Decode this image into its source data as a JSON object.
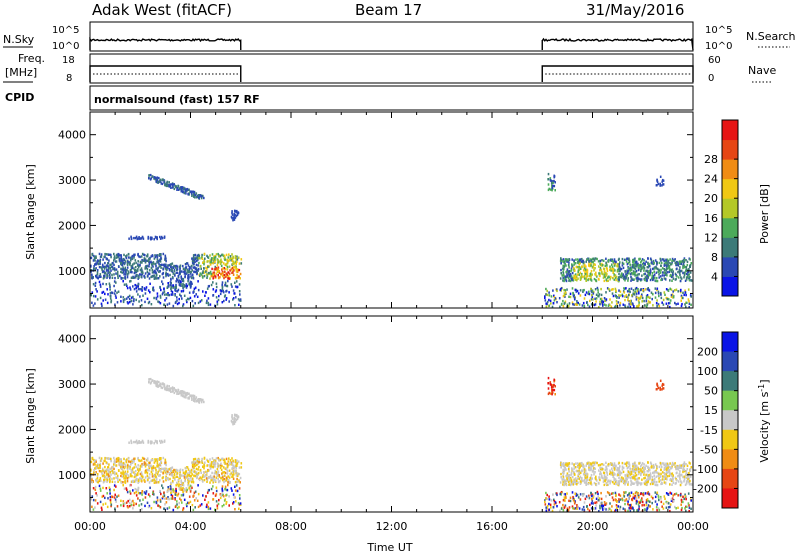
{
  "header": {
    "station": "Adak West (fitACF)",
    "beam": "Beam 17",
    "date": "31/May/2016"
  },
  "params": {
    "nsky_label": "N.Sky",
    "nsky_ticks": [
      "10^5",
      "10^0"
    ],
    "nsearch_label": "N.Search",
    "nsearch_ticks": [
      "10^5",
      "10^0"
    ],
    "freq_label_1": "Freq.",
    "freq_label_2": "[MHz]",
    "freq_ticks": [
      "18",
      "8"
    ],
    "nave_label": "Nave",
    "nave_ticks": [
      "60",
      "0"
    ],
    "cpid_label": "CPID",
    "cpid_text": "normalsound (fast) 157 RF"
  },
  "chart_data": [
    {
      "type": "heatmap",
      "name": "power",
      "xlabel": "",
      "ylabel": "Slant Range [km]",
      "xlim": [
        0,
        24
      ],
      "ylim": [
        180,
        4500
      ],
      "yticks": [
        "1000",
        "2000",
        "3000",
        "4000"
      ],
      "colorbar": {
        "label": "Power [dB]",
        "ticks": [
          "4",
          "8",
          "12",
          "16",
          "20",
          "24",
          "28"
        ],
        "colors": [
          "#0a14e6",
          "#2a48b4",
          "#3c7a78",
          "#4caa5a",
          "#b4c828",
          "#f0c814",
          "#f08c14",
          "#e64614",
          "#e61414"
        ]
      },
      "data_windows_hours": [
        [
          0,
          6
        ],
        [
          18,
          24
        ]
      ]
    },
    {
      "type": "heatmap",
      "name": "velocity",
      "xlabel": "Time UT",
      "ylabel": "Slant Range [km]",
      "xlim": [
        0,
        24
      ],
      "ylim": [
        180,
        4500
      ],
      "xticks": [
        "00:00",
        "04:00",
        "08:00",
        "12:00",
        "16:00",
        "20:00",
        "00:00"
      ],
      "yticks": [
        "1000",
        "2000",
        "3000",
        "4000"
      ],
      "colorbar": {
        "label_main": "Velocity [m s",
        "label_sup": "-1",
        "label_end": "]",
        "ticks": [
          "200",
          "100",
          "50",
          "15",
          "-15",
          "-50",
          "-100",
          "-200"
        ],
        "colors": [
          "#0a14e6",
          "#2a48b4",
          "#3c7a78",
          "#78c850",
          "#c8c8c8",
          "#f0c814",
          "#f08c14",
          "#e64614",
          "#e61414"
        ]
      },
      "data_windows_hours": [
        [
          0,
          6
        ],
        [
          18,
          24
        ]
      ]
    }
  ]
}
